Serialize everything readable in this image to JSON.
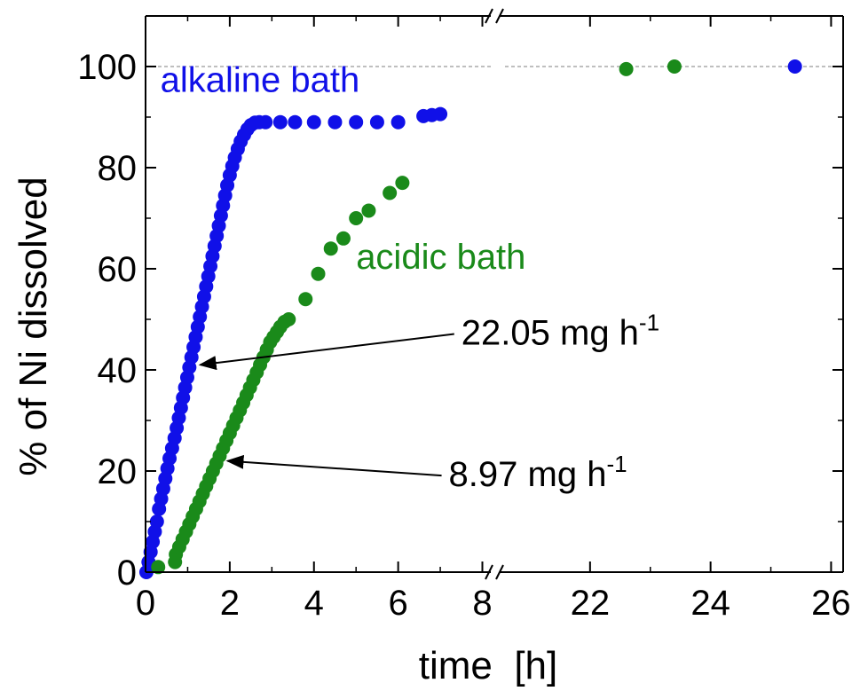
{
  "chart_data": {
    "type": "scatter",
    "xlabel": "time  [h]",
    "ylabel": "% of Ni dissolved",
    "ylim": [
      0,
      110
    ],
    "x_axis": {
      "broken": true,
      "segments": [
        {
          "range": [
            0,
            8.2
          ],
          "ticks": [
            0,
            2,
            4,
            6,
            8
          ]
        },
        {
          "range": [
            20.5,
            26.2
          ],
          "ticks": [
            22,
            24,
            26
          ]
        }
      ]
    },
    "y_ticks": [
      0,
      20,
      40,
      60,
      80,
      100
    ],
    "grid": false,
    "reference_line": {
      "y": 100,
      "style": "dashed",
      "color": "#999999"
    },
    "series": [
      {
        "name": "alkaline bath",
        "color": "#1010e8",
        "points": [
          [
            0.02,
            0
          ],
          [
            0.07,
            2
          ],
          [
            0.12,
            4
          ],
          [
            0.17,
            6
          ],
          [
            0.22,
            8
          ],
          [
            0.27,
            10
          ],
          [
            0.32,
            12.5
          ],
          [
            0.37,
            14.5
          ],
          [
            0.42,
            16.5
          ],
          [
            0.47,
            18.5
          ],
          [
            0.52,
            20.5
          ],
          [
            0.57,
            22.5
          ],
          [
            0.63,
            24.5
          ],
          [
            0.69,
            26.5
          ],
          [
            0.74,
            28.5
          ],
          [
            0.79,
            30.5
          ],
          [
            0.84,
            32.5
          ],
          [
            0.89,
            34.5
          ],
          [
            0.94,
            36.5
          ],
          [
            0.99,
            38.5
          ],
          [
            1.04,
            40.5
          ],
          [
            1.09,
            42.5
          ],
          [
            1.14,
            44.5
          ],
          [
            1.19,
            46.5
          ],
          [
            1.24,
            48.5
          ],
          [
            1.29,
            50.5
          ],
          [
            1.34,
            52.5
          ],
          [
            1.39,
            54.5
          ],
          [
            1.44,
            56.5
          ],
          [
            1.49,
            58.5
          ],
          [
            1.54,
            60.5
          ],
          [
            1.59,
            62.5
          ],
          [
            1.64,
            64.5
          ],
          [
            1.69,
            66.5
          ],
          [
            1.74,
            68.5
          ],
          [
            1.79,
            70.5
          ],
          [
            1.84,
            72.5
          ],
          [
            1.89,
            74.5
          ],
          [
            1.94,
            76.5
          ],
          [
            2.0,
            78.5
          ],
          [
            2.06,
            80.3
          ],
          [
            2.12,
            82
          ],
          [
            2.19,
            83.7
          ],
          [
            2.26,
            85.2
          ],
          [
            2.34,
            86.5
          ],
          [
            2.42,
            87.6
          ],
          [
            2.5,
            88.4
          ],
          [
            2.6,
            88.9
          ],
          [
            2.7,
            89
          ],
          [
            2.85,
            89
          ],
          [
            3.2,
            89
          ],
          [
            3.55,
            89
          ],
          [
            4.0,
            89
          ],
          [
            4.5,
            89
          ],
          [
            5.0,
            89
          ],
          [
            5.5,
            89
          ],
          [
            6.0,
            89
          ],
          [
            6.6,
            90.2
          ],
          [
            6.8,
            90.4
          ],
          [
            7.0,
            90.6
          ],
          [
            25.4,
            100
          ]
        ]
      },
      {
        "name": "acidic bath",
        "color": "#1a8a1a",
        "points": [
          [
            0.3,
            1
          ],
          [
            0.7,
            2
          ],
          [
            0.72,
            3.5
          ],
          [
            0.8,
            5
          ],
          [
            0.88,
            6.5
          ],
          [
            0.96,
            8
          ],
          [
            1.04,
            9.5
          ],
          [
            1.12,
            11
          ],
          [
            1.2,
            12.5
          ],
          [
            1.28,
            14
          ],
          [
            1.36,
            15.5
          ],
          [
            1.44,
            17
          ],
          [
            1.52,
            18.5
          ],
          [
            1.6,
            20
          ],
          [
            1.68,
            21.5
          ],
          [
            1.76,
            23
          ],
          [
            1.84,
            24.5
          ],
          [
            1.92,
            26
          ],
          [
            2.0,
            27.5
          ],
          [
            2.08,
            29
          ],
          [
            2.16,
            30.5
          ],
          [
            2.24,
            32
          ],
          [
            2.32,
            33.5
          ],
          [
            2.4,
            35
          ],
          [
            2.48,
            36.5
          ],
          [
            2.56,
            38
          ],
          [
            2.64,
            39.5
          ],
          [
            2.72,
            41
          ],
          [
            2.8,
            42.5
          ],
          [
            2.88,
            44
          ],
          [
            2.96,
            45.5
          ],
          [
            3.04,
            46.5
          ],
          [
            3.12,
            47.5
          ],
          [
            3.2,
            48.5
          ],
          [
            3.3,
            49.5
          ],
          [
            3.4,
            50
          ],
          [
            3.8,
            54
          ],
          [
            4.1,
            59
          ],
          [
            4.4,
            64
          ],
          [
            4.7,
            66
          ],
          [
            5.0,
            70
          ],
          [
            5.3,
            71.5
          ],
          [
            5.8,
            75
          ],
          [
            6.1,
            77
          ],
          [
            22.6,
            99.5
          ],
          [
            23.4,
            100
          ]
        ]
      }
    ],
    "annotations": [
      {
        "text": "alkaline bath",
        "color": "#1010e8",
        "at": [
          0.35,
          95
        ]
      },
      {
        "text": "acidic bath",
        "color": "#1a8a1a",
        "at": [
          5.0,
          60
        ]
      },
      {
        "text": "22.05 mg h",
        "sup": "-1",
        "color": "#000000",
        "at": [
          7.5,
          45
        ],
        "arrow_to": [
          1.3,
          41
        ]
      },
      {
        "text": "8.97 mg h",
        "sup": "-1",
        "color": "#000000",
        "at": [
          7.2,
          17
        ],
        "arrow_to": [
          1.95,
          22
        ]
      }
    ]
  }
}
